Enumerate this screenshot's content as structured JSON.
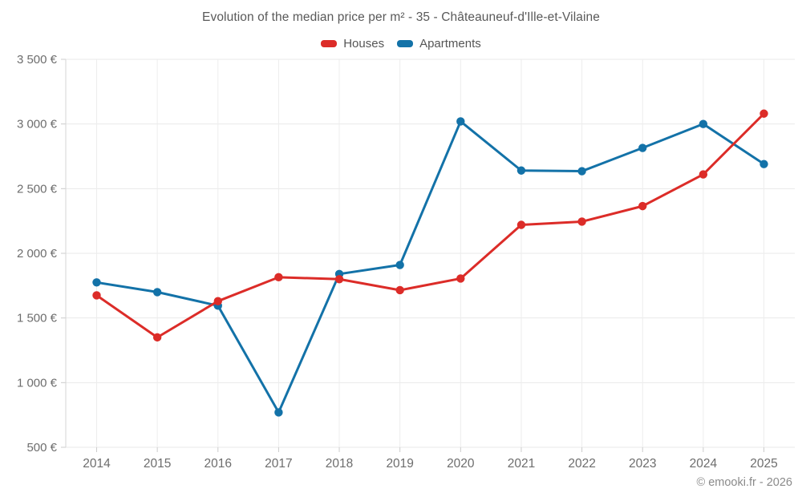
{
  "chart_data": {
    "type": "line",
    "title": "Evolution of the median price per m² - 35 - Châteauneuf-d'Ille-et-Vilaine",
    "x_categories": [
      "2014",
      "2015",
      "2016",
      "2017",
      "2018",
      "2019",
      "2020",
      "2021",
      "2022",
      "2023",
      "2024",
      "2025"
    ],
    "ylim": [
      500,
      3500
    ],
    "y_tick_values": [
      500,
      1000,
      1500,
      2000,
      2500,
      3000,
      3500
    ],
    "y_tick_labels": [
      "500 €",
      "1 000 €",
      "1 500 €",
      "2 000 €",
      "2 500 €",
      "3 000 €",
      "3 500 €"
    ],
    "grid": true,
    "legend_position": "top",
    "series": [
      {
        "name": "Houses",
        "color": "#dc2c28",
        "values": [
          1675,
          1350,
          1630,
          1815,
          1800,
          1715,
          1805,
          2220,
          2245,
          2365,
          2610,
          3080
        ]
      },
      {
        "name": "Apartments",
        "color": "#1372a8",
        "values": [
          1775,
          1700,
          1595,
          770,
          1840,
          1910,
          3020,
          2640,
          2635,
          2815,
          3000,
          2690
        ]
      }
    ]
  },
  "footer": {
    "credit": "© emooki.fr - 2026"
  }
}
